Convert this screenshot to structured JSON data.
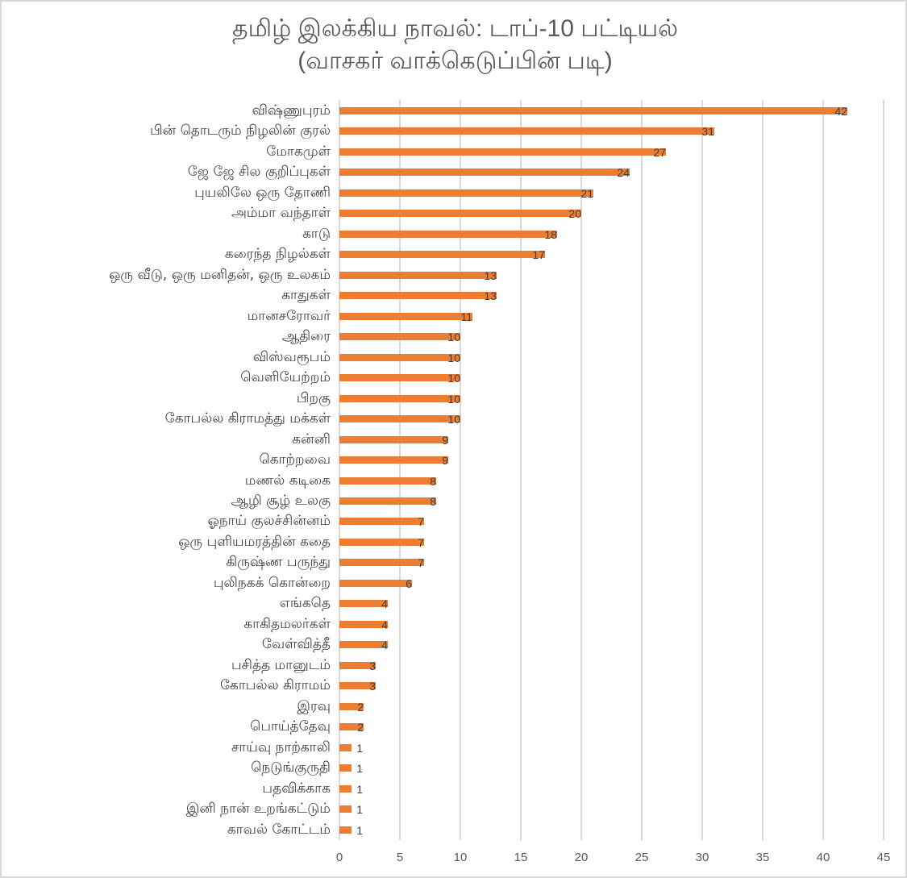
{
  "title": {
    "line1": "தமிழ் இலக்கிய நாவல்: டாப்-10 பட்டியல்",
    "line2": "(வாசகர் வாக்கெடுப்பின் படி)"
  },
  "colors": {
    "bar": "#ed7d31",
    "grid": "#d9d9d9",
    "text": "#404040",
    "title": "#595959"
  },
  "chart_data": {
    "type": "bar",
    "orientation": "horizontal",
    "title": "தமிழ் இலக்கிய நாவல்: டாப்-10 பட்டியல் (வாசகர் வாக்கெடுப்பின் படி)",
    "xlabel": "",
    "ylabel": "",
    "xlim": [
      0,
      45
    ],
    "xticks": [
      0,
      5,
      10,
      15,
      20,
      25,
      30,
      35,
      40,
      45
    ],
    "grid": true,
    "legend": false,
    "data_labels": true,
    "categories": [
      "விஷ்ணுபுரம்",
      "பின் தொடரும் நிழலின் குரல்",
      "மோகமுள்",
      "ஜே ஜே சில குறிப்புகள்",
      "புயலிலே ஒரு தோணி",
      "அம்மா வந்தாள்",
      "காடு",
      "கரைந்த நிழல்கள்",
      "ஒரு வீடு, ஒரு மனிதன், ஒரு உலகம்",
      "காதுகள்",
      "மானசரோவர்",
      "ஆதிரை",
      "விஸ்வரூபம்",
      "வெளியேற்றம்",
      "பிறகு",
      "கோபல்ல கிராமத்து மக்கள்",
      "கன்னி",
      "கொற்றவை",
      "மணல் கடிகை",
      "ஆழி சூழ் உலகு",
      "ஓநாய் குலச்சின்னம்",
      "ஒரு புளியமரத்தின் கதை",
      "கிருஷ்ண பருந்து",
      "புலிநகக் கொன்றை",
      "எங்கதெ",
      "காகிதமலர்கள்",
      "வேள்வித்தீ",
      "பசித்த மானுடம்",
      "கோபல்ல கிராமம்",
      "இரவு",
      "பொய்த்தேவு",
      "சாய்வு நாற்காலி",
      "நெடுங்குருதி",
      "பதவிக்காக",
      "இனி நான் உறங்கட்டும்",
      "காவல் கோட்டம்"
    ],
    "values": [
      42,
      31,
      27,
      24,
      21,
      20,
      18,
      17,
      13,
      13,
      11,
      10,
      10,
      10,
      10,
      10,
      9,
      9,
      8,
      8,
      7,
      7,
      7,
      6,
      4,
      4,
      4,
      3,
      3,
      2,
      2,
      1,
      1,
      1,
      1,
      1
    ]
  }
}
